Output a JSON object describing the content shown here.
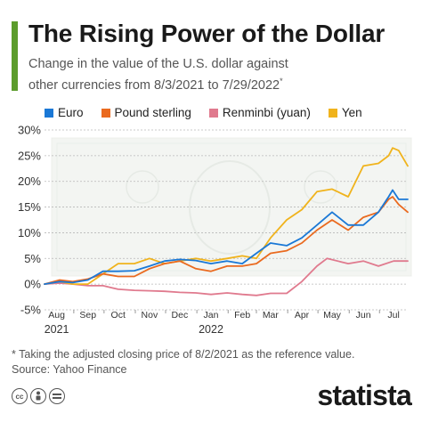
{
  "header": {
    "title": "The Rising Power of the Dollar",
    "subtitle_line1": "Change in the value of the U.S. dollar against",
    "subtitle_line2": "other currencies from 8/3/2021 to 7/29/2022",
    "subtitle_mark": "*"
  },
  "colors": {
    "accent": "#5c9c2c",
    "euro": "#1a78d6",
    "pound": "#ea6a1f",
    "renminbi": "#e07a8e",
    "yen": "#f0b31c"
  },
  "chart_data": {
    "type": "line",
    "title": "The Rising Power of the Dollar",
    "x_range": [
      "2021-08-03",
      "2022-07-29"
    ],
    "ylim": [
      -5,
      30
    ],
    "y_ticks": [
      -5,
      0,
      5,
      10,
      15,
      20,
      25,
      30
    ],
    "y_tick_labels": [
      "-5%",
      "0%",
      "5%",
      "10%",
      "15%",
      "20%",
      "25%",
      "30%"
    ],
    "x_tick_labels": [
      "Aug",
      "Sep",
      "Oct",
      "Nov",
      "Dec",
      "Jan",
      "Feb",
      "Mar",
      "Apr",
      "May",
      "Jun",
      "Jul"
    ],
    "year_labels": [
      {
        "label": "2021",
        "under": "Aug"
      },
      {
        "label": "2022",
        "under": "Jan"
      }
    ],
    "grid": true,
    "legend_position": "top",
    "series": [
      {
        "name": "Euro",
        "color": "#1a78d6",
        "points": [
          [
            "2021-08-03",
            0
          ],
          [
            "2021-08-18",
            0.5
          ],
          [
            "2021-08-31",
            0.3
          ],
          [
            "2021-09-15",
            0.8
          ],
          [
            "2021-09-30",
            2.5
          ],
          [
            "2021-10-15",
            2.5
          ],
          [
            "2021-10-31",
            2.6
          ],
          [
            "2021-11-15",
            3.5
          ],
          [
            "2021-11-30",
            4.5
          ],
          [
            "2021-12-15",
            4.8
          ],
          [
            "2021-12-31",
            4.6
          ],
          [
            "2022-01-15",
            4.0
          ],
          [
            "2022-01-31",
            4.5
          ],
          [
            "2022-02-15",
            4.0
          ],
          [
            "2022-03-01",
            6.0
          ],
          [
            "2022-03-15",
            8.0
          ],
          [
            "2022-03-31",
            7.5
          ],
          [
            "2022-04-15",
            9.0
          ],
          [
            "2022-04-30",
            11.5
          ],
          [
            "2022-05-15",
            14.0
          ],
          [
            "2022-05-31",
            11.5
          ],
          [
            "2022-06-15",
            11.5
          ],
          [
            "2022-06-30",
            14.0
          ],
          [
            "2022-07-10",
            17.0
          ],
          [
            "2022-07-14",
            18.3
          ],
          [
            "2022-07-20",
            16.5
          ],
          [
            "2022-07-29",
            16.5
          ]
        ]
      },
      {
        "name": "Pound sterling",
        "color": "#ea6a1f",
        "points": [
          [
            "2021-08-03",
            0
          ],
          [
            "2021-08-18",
            0.8
          ],
          [
            "2021-08-31",
            0.5
          ],
          [
            "2021-09-15",
            1.0
          ],
          [
            "2021-09-30",
            2.0
          ],
          [
            "2021-10-15",
            1.5
          ],
          [
            "2021-10-31",
            1.5
          ],
          [
            "2021-11-15",
            3.0
          ],
          [
            "2021-11-30",
            4.0
          ],
          [
            "2021-12-15",
            4.5
          ],
          [
            "2021-12-31",
            3.0
          ],
          [
            "2022-01-15",
            2.5
          ],
          [
            "2022-01-31",
            3.5
          ],
          [
            "2022-02-15",
            3.5
          ],
          [
            "2022-03-01",
            4.0
          ],
          [
            "2022-03-15",
            6.0
          ],
          [
            "2022-03-31",
            6.5
          ],
          [
            "2022-04-15",
            8.0
          ],
          [
            "2022-04-30",
            10.5
          ],
          [
            "2022-05-15",
            12.5
          ],
          [
            "2022-05-31",
            10.5
          ],
          [
            "2022-06-15",
            13.0
          ],
          [
            "2022-06-30",
            14.0
          ],
          [
            "2022-07-10",
            16.5
          ],
          [
            "2022-07-14",
            17.0
          ],
          [
            "2022-07-20",
            15.5
          ],
          [
            "2022-07-29",
            14.0
          ]
        ]
      },
      {
        "name": "Renminbi (yuan)",
        "color": "#e07a8e",
        "points": [
          [
            "2021-08-03",
            0
          ],
          [
            "2021-08-18",
            0.2
          ],
          [
            "2021-08-31",
            0
          ],
          [
            "2021-09-15",
            -0.3
          ],
          [
            "2021-09-30",
            -0.3
          ],
          [
            "2021-10-15",
            -1.0
          ],
          [
            "2021-10-31",
            -1.2
          ],
          [
            "2021-11-15",
            -1.3
          ],
          [
            "2021-11-30",
            -1.4
          ],
          [
            "2021-12-15",
            -1.6
          ],
          [
            "2021-12-31",
            -1.7
          ],
          [
            "2022-01-15",
            -2.0
          ],
          [
            "2022-01-31",
            -1.7
          ],
          [
            "2022-02-15",
            -2.0
          ],
          [
            "2022-03-01",
            -2.2
          ],
          [
            "2022-03-15",
            -1.8
          ],
          [
            "2022-03-31",
            -1.8
          ],
          [
            "2022-04-15",
            0.5
          ],
          [
            "2022-04-30",
            3.5
          ],
          [
            "2022-05-10",
            5.0
          ],
          [
            "2022-05-31",
            4.0
          ],
          [
            "2022-06-15",
            4.5
          ],
          [
            "2022-06-30",
            3.5
          ],
          [
            "2022-07-15",
            4.5
          ],
          [
            "2022-07-29",
            4.5
          ]
        ]
      },
      {
        "name": "Yen",
        "color": "#f0b31c",
        "points": [
          [
            "2021-08-03",
            0
          ],
          [
            "2021-08-18",
            0.5
          ],
          [
            "2021-08-31",
            0
          ],
          [
            "2021-09-15",
            0
          ],
          [
            "2021-09-30",
            2.0
          ],
          [
            "2021-10-15",
            4.0
          ],
          [
            "2021-10-31",
            4.0
          ],
          [
            "2021-11-15",
            5.0
          ],
          [
            "2021-11-30",
            4.0
          ],
          [
            "2021-12-15",
            4.5
          ],
          [
            "2021-12-31",
            5.0
          ],
          [
            "2022-01-15",
            4.5
          ],
          [
            "2022-01-31",
            5.0
          ],
          [
            "2022-02-15",
            5.5
          ],
          [
            "2022-03-01",
            5.0
          ],
          [
            "2022-03-15",
            9.0
          ],
          [
            "2022-03-31",
            12.5
          ],
          [
            "2022-04-15",
            14.5
          ],
          [
            "2022-04-30",
            18.0
          ],
          [
            "2022-05-15",
            18.5
          ],
          [
            "2022-05-31",
            17.0
          ],
          [
            "2022-06-15",
            23.0
          ],
          [
            "2022-06-30",
            23.5
          ],
          [
            "2022-07-10",
            25.0
          ],
          [
            "2022-07-14",
            26.5
          ],
          [
            "2022-07-20",
            26.0
          ],
          [
            "2022-07-29",
            23.0
          ]
        ]
      }
    ]
  },
  "legend": [
    {
      "label": "Euro",
      "color": "#1a78d6"
    },
    {
      "label": "Pound sterling",
      "color": "#ea6a1f"
    },
    {
      "label": "Renminbi (yuan)",
      "color": "#e07a8e"
    },
    {
      "label": "Yen",
      "color": "#f0b31c"
    }
  ],
  "footnote": {
    "line1": "* Taking the adjusted closing price of 8/2/2021 as the reference value.",
    "line2": "Source: Yahoo Finance"
  },
  "footer": {
    "brand": "statista",
    "license_icons": [
      "cc-icon",
      "person-icon",
      "equals-icon"
    ]
  }
}
